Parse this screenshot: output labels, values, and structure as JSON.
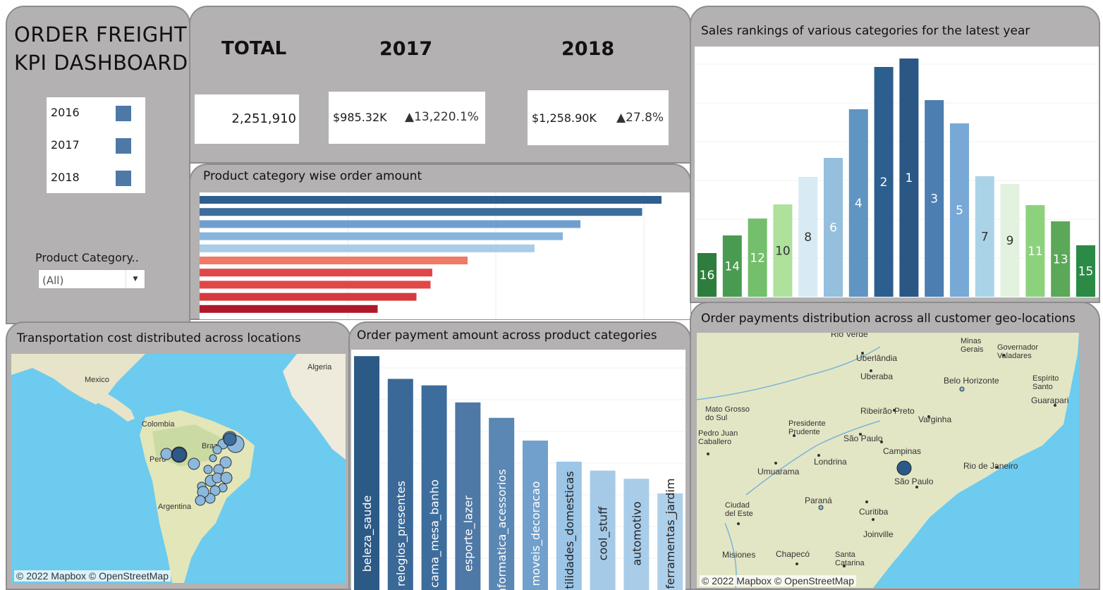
{
  "dashboard": {
    "title_line1": "ORDER FREIGHT",
    "title_line2": "KPI DASHBOARD",
    "legend": [
      {
        "label": "2016",
        "color": "#4e79a7"
      },
      {
        "label": "2017",
        "color": "#4e79a7"
      },
      {
        "label": "2018",
        "color": "#4e79a7"
      }
    ],
    "filter_label": "Product Category..",
    "filter_value": "(All)"
  },
  "kpis": {
    "total_header": "TOTAL",
    "total_value": "2,251,910",
    "y2017_header": "2017",
    "y2017_value": "$985.32K",
    "y2017_change": "▲13,220.1%",
    "y2018_header": "2018",
    "y2018_value": "$1,258.90K",
    "y2018_change": "▲27.8%"
  },
  "panels": {
    "category_amount_title": "Product category wise order amount",
    "sales_rank_title": "Sales rankings of various categories for the latest year",
    "transport_title": "Transportation cost distributed across locations",
    "payment_amount_title": "Order payment amount  across product categories",
    "geo_title": "Order payments distribution across all customer geo-locations"
  },
  "maps": {
    "copyright": "© 2022 Mapbox © OpenStreetMap",
    "world_labels": [
      "Mexico",
      "Algeria",
      "Colombia",
      "Peru",
      "Brazil",
      "Argentina"
    ],
    "sp_labels": [
      "Minas Gerais",
      "Governador Valadares",
      "Uberlândia",
      "Uberaba",
      "Belo Horizonte",
      "Espírito Santo",
      "Guarapari",
      "Mato Grosso do Sul",
      "Ribeirão Preto",
      "Varginha",
      "Presidente Prudente",
      "São Paulo",
      "Pedro Juan Caballero",
      "Campinas",
      "Rio de Janeiro",
      "Londrina",
      "Umuarama",
      "São Paulo",
      "Ciudad del Este",
      "Paraná",
      "Curitiba",
      "Joinville",
      "Misiones",
      "Chapecó",
      "Santa Catarina",
      "Rio Verde"
    ]
  },
  "chart_data": [
    {
      "type": "bar",
      "orientation": "horizontal",
      "title": "Product category wise order amount",
      "values": [
        1310,
        1255,
        1080,
        1030,
        950,
        760,
        660,
        655,
        615,
        505
      ],
      "colors": [
        "#2f5f8f",
        "#3d6d9c",
        "#6f9fcf",
        "#87b4dc",
        "#a9cce8",
        "#ef7a66",
        "#e04848",
        "#e04848",
        "#d63a3f",
        "#b0182a"
      ],
      "xlim": [
        0,
        1380
      ]
    },
    {
      "type": "bar",
      "title": "Sales rankings of various categories for the latest year",
      "categories": [
        "16",
        "14",
        "12",
        "10",
        "8",
        "6",
        "4",
        "2",
        "1",
        "3",
        "5",
        "7",
        "9",
        "11",
        "13",
        "15"
      ],
      "values": [
        62,
        87,
        111,
        131,
        170,
        197,
        266,
        326,
        338,
        279,
        246,
        171,
        160,
        130,
        107,
        73
      ],
      "colors": [
        "#2e7d3e",
        "#4a9b52",
        "#73bf6b",
        "#ade19c",
        "#d8ebf4",
        "#94bfdd",
        "#5f94c3",
        "#2d5f8e",
        "#2a5784",
        "#4c7eb1",
        "#78a8d6",
        "#aad3e8",
        "#e2f2df",
        "#8cd27c",
        "#5ba858",
        "#2c8a47"
      ],
      "ylim": [
        0,
        345
      ]
    },
    {
      "type": "bar",
      "title": "Order payment amount  across product categories",
      "categories": [
        "beleza_saude",
        "relogios_presentes",
        "cama_mesa_banho",
        "esporte_lazer",
        "informatica_acessorios",
        "moveis_decoracao",
        "utilidades_domesticas",
        "cool_stuff",
        "automotivo",
        "ferramentas_jardim"
      ],
      "values": [
        1440,
        1300,
        1260,
        1155,
        1060,
        920,
        790,
        735,
        685,
        595
      ],
      "colors": [
        "#2c5a87",
        "#3a6997",
        "#3d6d9c",
        "#4e79a7",
        "#5a87b4",
        "#72a0cc",
        "#9cc5e6",
        "#a4cae8",
        "#a9cde9",
        "#aed0ea"
      ],
      "ylim": [
        0,
        1480
      ]
    }
  ]
}
